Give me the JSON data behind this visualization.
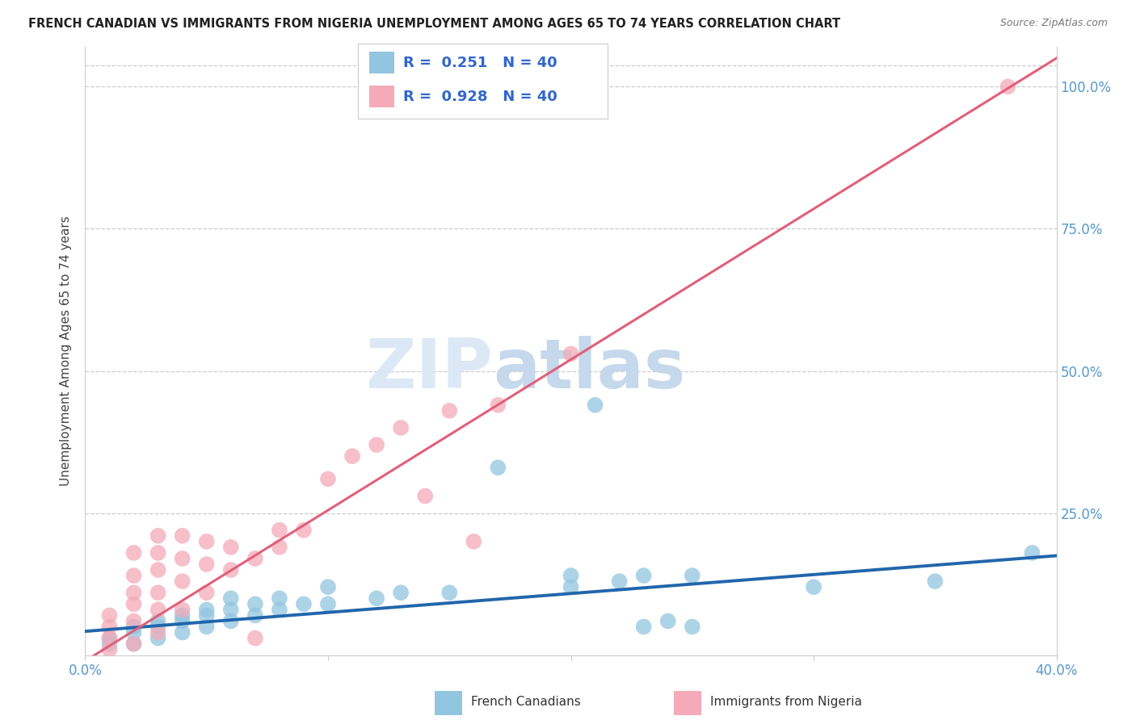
{
  "title": "FRENCH CANADIAN VS IMMIGRANTS FROM NIGERIA UNEMPLOYMENT AMONG AGES 65 TO 74 YEARS CORRELATION CHART",
  "source": "Source: ZipAtlas.com",
  "ylabel": "Unemployment Among Ages 65 to 74 years",
  "x_min": 0.0,
  "x_max": 0.4,
  "y_min": 0.0,
  "y_max": 1.07,
  "x_ticks": [
    0.0,
    0.1,
    0.2,
    0.3,
    0.4
  ],
  "x_tick_labels_show": [
    "0.0%",
    "",
    "",
    "",
    "40.0%"
  ],
  "y_tick_labels_right": [
    "",
    "25.0%",
    "50.0%",
    "75.0%",
    "100.0%"
  ],
  "y_ticks_right": [
    0.0,
    0.25,
    0.5,
    0.75,
    1.0
  ],
  "blue_color": "#92c5e0",
  "pink_color": "#f4aab8",
  "blue_line_color": "#2166ac",
  "pink_line_color": "#e0607a",
  "watermark_color": "#d0dff0",
  "background_color": "#ffffff",
  "grid_color": "#cccccc",
  "french_canadians_label": "French Canadians",
  "nigeria_label": "Immigrants from Nigeria",
  "blue_scatter": [
    [
      0.01,
      0.02
    ],
    [
      0.01,
      0.03
    ],
    [
      0.02,
      0.02
    ],
    [
      0.02,
      0.04
    ],
    [
      0.02,
      0.05
    ],
    [
      0.03,
      0.03
    ],
    [
      0.03,
      0.05
    ],
    [
      0.03,
      0.06
    ],
    [
      0.04,
      0.04
    ],
    [
      0.04,
      0.06
    ],
    [
      0.04,
      0.07
    ],
    [
      0.05,
      0.05
    ],
    [
      0.05,
      0.07
    ],
    [
      0.05,
      0.08
    ],
    [
      0.06,
      0.06
    ],
    [
      0.06,
      0.08
    ],
    [
      0.06,
      0.1
    ],
    [
      0.07,
      0.07
    ],
    [
      0.07,
      0.09
    ],
    [
      0.08,
      0.08
    ],
    [
      0.08,
      0.1
    ],
    [
      0.09,
      0.09
    ],
    [
      0.1,
      0.09
    ],
    [
      0.1,
      0.12
    ],
    [
      0.12,
      0.1
    ],
    [
      0.13,
      0.11
    ],
    [
      0.15,
      0.11
    ],
    [
      0.17,
      0.33
    ],
    [
      0.2,
      0.14
    ],
    [
      0.2,
      0.12
    ],
    [
      0.21,
      0.44
    ],
    [
      0.22,
      0.13
    ],
    [
      0.23,
      0.14
    ],
    [
      0.23,
      0.05
    ],
    [
      0.24,
      0.06
    ],
    [
      0.25,
      0.14
    ],
    [
      0.25,
      0.05
    ],
    [
      0.3,
      0.12
    ],
    [
      0.35,
      0.13
    ],
    [
      0.39,
      0.18
    ]
  ],
  "pink_scatter": [
    [
      0.01,
      0.01
    ],
    [
      0.01,
      0.03
    ],
    [
      0.01,
      0.05
    ],
    [
      0.01,
      0.07
    ],
    [
      0.02,
      0.02
    ],
    [
      0.02,
      0.06
    ],
    [
      0.02,
      0.09
    ],
    [
      0.02,
      0.11
    ],
    [
      0.02,
      0.14
    ],
    [
      0.02,
      0.18
    ],
    [
      0.03,
      0.04
    ],
    [
      0.03,
      0.08
    ],
    [
      0.03,
      0.11
    ],
    [
      0.03,
      0.15
    ],
    [
      0.03,
      0.18
    ],
    [
      0.03,
      0.21
    ],
    [
      0.04,
      0.08
    ],
    [
      0.04,
      0.13
    ],
    [
      0.04,
      0.17
    ],
    [
      0.04,
      0.21
    ],
    [
      0.05,
      0.11
    ],
    [
      0.05,
      0.16
    ],
    [
      0.05,
      0.2
    ],
    [
      0.06,
      0.15
    ],
    [
      0.06,
      0.19
    ],
    [
      0.07,
      0.03
    ],
    [
      0.07,
      0.17
    ],
    [
      0.08,
      0.19
    ],
    [
      0.08,
      0.22
    ],
    [
      0.09,
      0.22
    ],
    [
      0.1,
      0.31
    ],
    [
      0.11,
      0.35
    ],
    [
      0.12,
      0.37
    ],
    [
      0.13,
      0.4
    ],
    [
      0.14,
      0.28
    ],
    [
      0.15,
      0.43
    ],
    [
      0.16,
      0.2
    ],
    [
      0.17,
      0.44
    ],
    [
      0.2,
      0.53
    ],
    [
      0.38,
      1.0
    ]
  ],
  "blue_trendline": [
    [
      0.0,
      0.042
    ],
    [
      0.4,
      0.175
    ]
  ],
  "pink_trendline": [
    [
      0.0,
      -0.01
    ],
    [
      0.4,
      1.05
    ]
  ]
}
